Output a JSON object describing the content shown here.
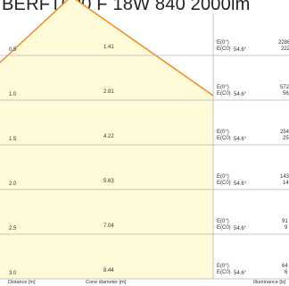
{
  "title": "BERFT600 F 18W 840 2000lm",
  "rows": [
    {
      "distance": "0.5",
      "diameter": "1.41",
      "e0": "E(0°)",
      "ec0": "E(C0)",
      "angle": "54.6°",
      "lux1": "2286",
      "lux2": "222"
    },
    {
      "distance": "1.0",
      "diameter": "2.81",
      "e0": "E(0°)",
      "ec0": "E(C0)",
      "angle": "54.6°",
      "lux1": "572",
      "lux2": "56"
    },
    {
      "distance": "1.5",
      "diameter": "4.22",
      "e0": "E(0°)",
      "ec0": "E(C0)",
      "angle": "54.6°",
      "lux1": "254",
      "lux2": "25"
    },
    {
      "distance": "2.0",
      "diameter": "5.63",
      "e0": "E(0°)",
      "ec0": "E(C0)",
      "angle": "54.6°",
      "lux1": "143",
      "lux2": "14"
    },
    {
      "distance": "2.5",
      "diameter": "7.04",
      "e0": "E(0°)",
      "ec0": "E(C0)",
      "angle": "54.6°",
      "lux1": "91",
      "lux2": "9"
    },
    {
      "distance": "3.0",
      "diameter": "8.44",
      "e0": "E(0°)",
      "ec0": "E(C0)",
      "angle": "54.6°",
      "lux1": "64",
      "lux2": "6"
    }
  ],
  "footer": {
    "distance_label": "Distance [m]",
    "diameter_label": "Cone diameter [m]",
    "illuminance_label": "Illuminance [lx]"
  },
  "colors": {
    "cone_fill": "#fffbd9",
    "cone_edge": "#f28a1a",
    "grid": "#b4b4b4",
    "background": "#ffffff"
  }
}
